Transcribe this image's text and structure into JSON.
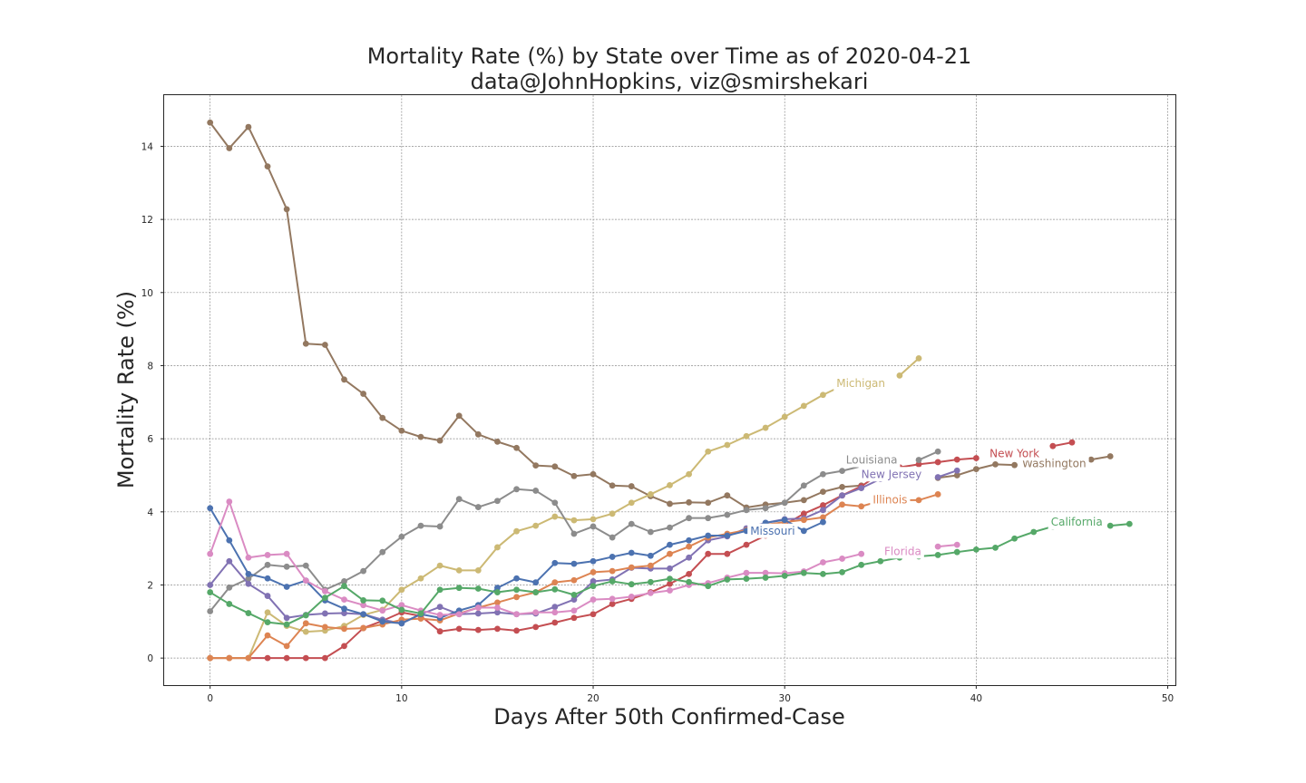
{
  "chart_data": {
    "type": "line",
    "title": "Mortality Rate (%) by State over Time as of 2020-04-21",
    "subtitle": "data@JohnHopkins, viz@smirshekari",
    "xlabel": "Days After 50th Confirmed-Case",
    "ylabel": "Mortality Rate (%)",
    "xlim": [
      -2.4,
      50.4
    ],
    "ylim": [
      -0.74,
      15.4
    ],
    "xticks": [
      0,
      10,
      20,
      30,
      40,
      50
    ],
    "yticks": [
      0,
      2,
      4,
      6,
      8,
      10,
      12,
      14
    ],
    "grid": true,
    "series": [
      {
        "name": "Washington",
        "color": "#937860",
        "label_at": [
          42.4,
          5.32
        ],
        "values": [
          14.65,
          13.95,
          14.53,
          13.45,
          12.28,
          8.6,
          8.57,
          7.62,
          7.23,
          6.57,
          6.22,
          6.05,
          5.95,
          6.63,
          6.12,
          5.92,
          5.75,
          5.27,
          5.24,
          4.98,
          5.03,
          4.72,
          4.7,
          4.43,
          4.22,
          4.26,
          4.25,
          4.45,
          4.12,
          4.2,
          4.25,
          4.32,
          4.55,
          4.68,
          4.72,
          null,
          null,
          null,
          4.93,
          5.0,
          5.17,
          5.3,
          5.28,
          null,
          null,
          null,
          5.43,
          5.52
        ]
      },
      {
        "name": "New York",
        "color": "#c44e52",
        "label_at": [
          40.7,
          5.6
        ],
        "values": [
          0,
          0,
          0,
          0,
          0,
          0,
          0,
          0.33,
          0.82,
          1.02,
          1.25,
          1.15,
          0.73,
          0.8,
          0.77,
          0.8,
          0.75,
          0.85,
          0.97,
          1.1,
          1.2,
          1.48,
          1.62,
          1.8,
          2.03,
          2.3,
          2.85,
          2.85,
          3.1,
          3.35,
          3.65,
          3.95,
          4.18,
          4.45,
          4.7,
          5.05,
          5.22,
          5.3,
          5.36,
          5.43,
          5.47,
          null,
          null,
          null,
          5.8,
          5.9
        ]
      },
      {
        "name": "Michigan",
        "color": "#ccb974",
        "label_at": [
          32.7,
          7.52
        ],
        "values": [
          0,
          0,
          0,
          1.25,
          0.88,
          0.72,
          0.75,
          0.88,
          1.18,
          1.32,
          1.87,
          2.18,
          2.53,
          2.4,
          2.4,
          3.03,
          3.47,
          3.62,
          3.87,
          3.77,
          3.8,
          3.95,
          4.25,
          4.48,
          4.73,
          5.03,
          5.65,
          5.83,
          6.07,
          6.3,
          6.6,
          6.9,
          7.2,
          7.45,
          null,
          null,
          7.73,
          8.2
        ]
      },
      {
        "name": "Louisiana",
        "color": "#8c8c8c",
        "label_at": [
          33.2,
          5.42
        ],
        "values": [
          1.28,
          1.93,
          2.17,
          2.55,
          2.5,
          2.53,
          1.87,
          2.1,
          2.38,
          2.9,
          3.32,
          3.62,
          3.6,
          4.35,
          4.13,
          4.3,
          4.62,
          4.58,
          4.25,
          3.4,
          3.6,
          3.3,
          3.67,
          3.45,
          3.57,
          3.83,
          3.83,
          3.92,
          4.05,
          4.1,
          4.25,
          4.72,
          5.03,
          5.12,
          5.25,
          null,
          null,
          5.42,
          5.65
        ]
      },
      {
        "name": "New Jersey",
        "color": "#8172b3",
        "label_at": [
          34.0,
          5.03
        ],
        "values": [
          2.0,
          2.65,
          2.03,
          1.7,
          1.1,
          1.18,
          1.22,
          1.23,
          1.2,
          1.05,
          0.95,
          1.2,
          1.4,
          1.2,
          1.22,
          1.25,
          1.2,
          1.22,
          1.4,
          1.6,
          2.1,
          2.15,
          2.47,
          2.45,
          2.45,
          2.75,
          3.22,
          3.33,
          3.55,
          3.7,
          3.8,
          3.82,
          4.05,
          4.45,
          4.65,
          4.9,
          null,
          null,
          4.95,
          5.13
        ]
      },
      {
        "name": "Illinois",
        "color": "#dd8452",
        "label_at": [
          34.6,
          4.33
        ],
        "values": [
          0,
          0,
          0,
          0.62,
          0.33,
          0.95,
          0.85,
          0.8,
          0.82,
          0.92,
          1.05,
          1.08,
          1.03,
          1.22,
          1.38,
          1.52,
          1.67,
          1.8,
          2.07,
          2.13,
          2.35,
          2.38,
          2.48,
          2.53,
          2.85,
          3.05,
          3.3,
          3.4,
          3.5,
          3.65,
          3.72,
          3.78,
          3.85,
          4.2,
          4.15,
          4.3,
          4.32,
          4.32,
          4.48
        ]
      },
      {
        "name": "Missouri",
        "color": "#4c72b0",
        "label_at": [
          28.2,
          3.48
        ],
        "values": [
          4.1,
          3.22,
          2.3,
          2.18,
          1.95,
          2.12,
          1.58,
          1.35,
          1.2,
          1.0,
          0.95,
          1.2,
          1.1,
          1.3,
          1.45,
          1.92,
          2.18,
          2.07,
          2.6,
          2.58,
          2.65,
          2.77,
          2.88,
          2.8,
          3.1,
          3.22,
          3.35,
          3.35,
          3.48,
          3.7,
          3.78,
          3.48,
          3.72
        ]
      },
      {
        "name": "Florida",
        "color": "#da8bc3",
        "label_at": [
          35.2,
          2.92
        ],
        "values": [
          2.85,
          4.28,
          2.75,
          2.82,
          2.85,
          2.12,
          1.83,
          1.6,
          1.45,
          1.3,
          1.45,
          1.3,
          1.18,
          1.2,
          1.38,
          1.38,
          1.2,
          1.25,
          1.25,
          1.3,
          1.6,
          1.62,
          1.68,
          1.78,
          1.85,
          2.0,
          2.05,
          2.2,
          2.33,
          2.33,
          2.32,
          2.37,
          2.62,
          2.72,
          2.85,
          null,
          null,
          null,
          3.05,
          3.1
        ]
      },
      {
        "name": "California",
        "color": "#55a868",
        "label_at": [
          43.9,
          3.72
        ],
        "values": [
          1.8,
          1.48,
          1.23,
          0.98,
          0.92,
          1.17,
          1.65,
          1.97,
          1.58,
          1.57,
          1.32,
          1.22,
          1.87,
          1.92,
          1.9,
          1.8,
          1.87,
          1.8,
          1.88,
          1.73,
          1.97,
          2.1,
          2.02,
          2.08,
          2.17,
          2.08,
          1.97,
          2.15,
          2.17,
          2.2,
          2.25,
          2.33,
          2.3,
          2.35,
          2.55,
          2.65,
          2.75,
          2.78,
          2.82,
          2.9,
          2.97,
          3.02,
          3.27,
          3.45,
          3.6,
          null,
          null,
          3.62,
          3.67
        ]
      }
    ]
  }
}
